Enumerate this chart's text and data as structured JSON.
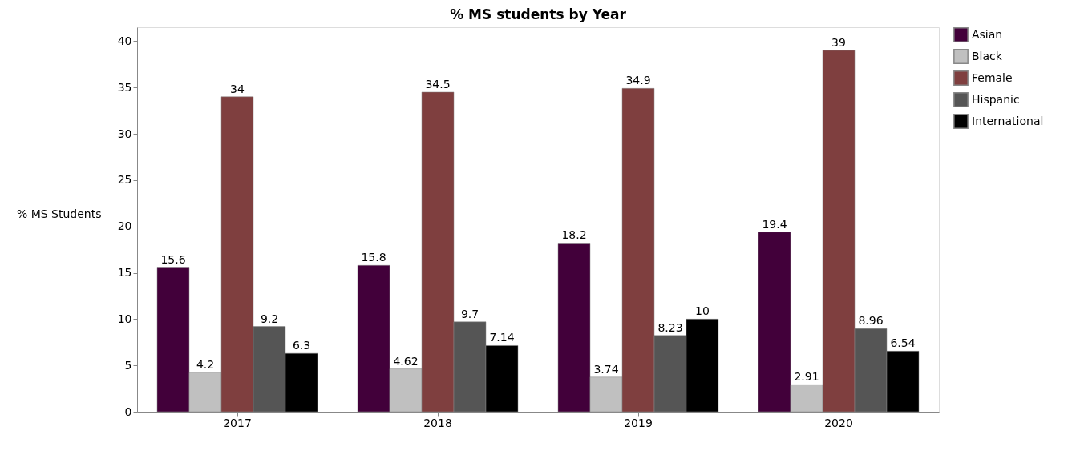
{
  "chart_data": {
    "type": "bar",
    "title": "% MS students by Year",
    "ylabel": "% MS Students",
    "categories": [
      "2017",
      "2018",
      "2019",
      "2020"
    ],
    "series": [
      {
        "name": "Asian",
        "color": "#42003a",
        "values": [
          15.6,
          15.8,
          18.2,
          19.4
        ]
      },
      {
        "name": "Black",
        "color": "#c0c0c0",
        "values": [
          4.2,
          4.62,
          3.74,
          2.91
        ]
      },
      {
        "name": "Female",
        "color": "#7f3f3f",
        "values": [
          34,
          34.5,
          34.9,
          39
        ]
      },
      {
        "name": "Hispanic",
        "color": "#555555",
        "values": [
          9.2,
          9.7,
          8.23,
          8.96
        ]
      },
      {
        "name": "International",
        "color": "#000000",
        "values": [
          6.3,
          7.14,
          10,
          6.54
        ]
      }
    ],
    "ylim": [
      0,
      41.5
    ],
    "yticks": [
      0,
      5,
      10,
      15,
      20,
      25,
      30,
      35,
      40
    ],
    "data_labels": true,
    "legend": "right",
    "grid": false
  }
}
